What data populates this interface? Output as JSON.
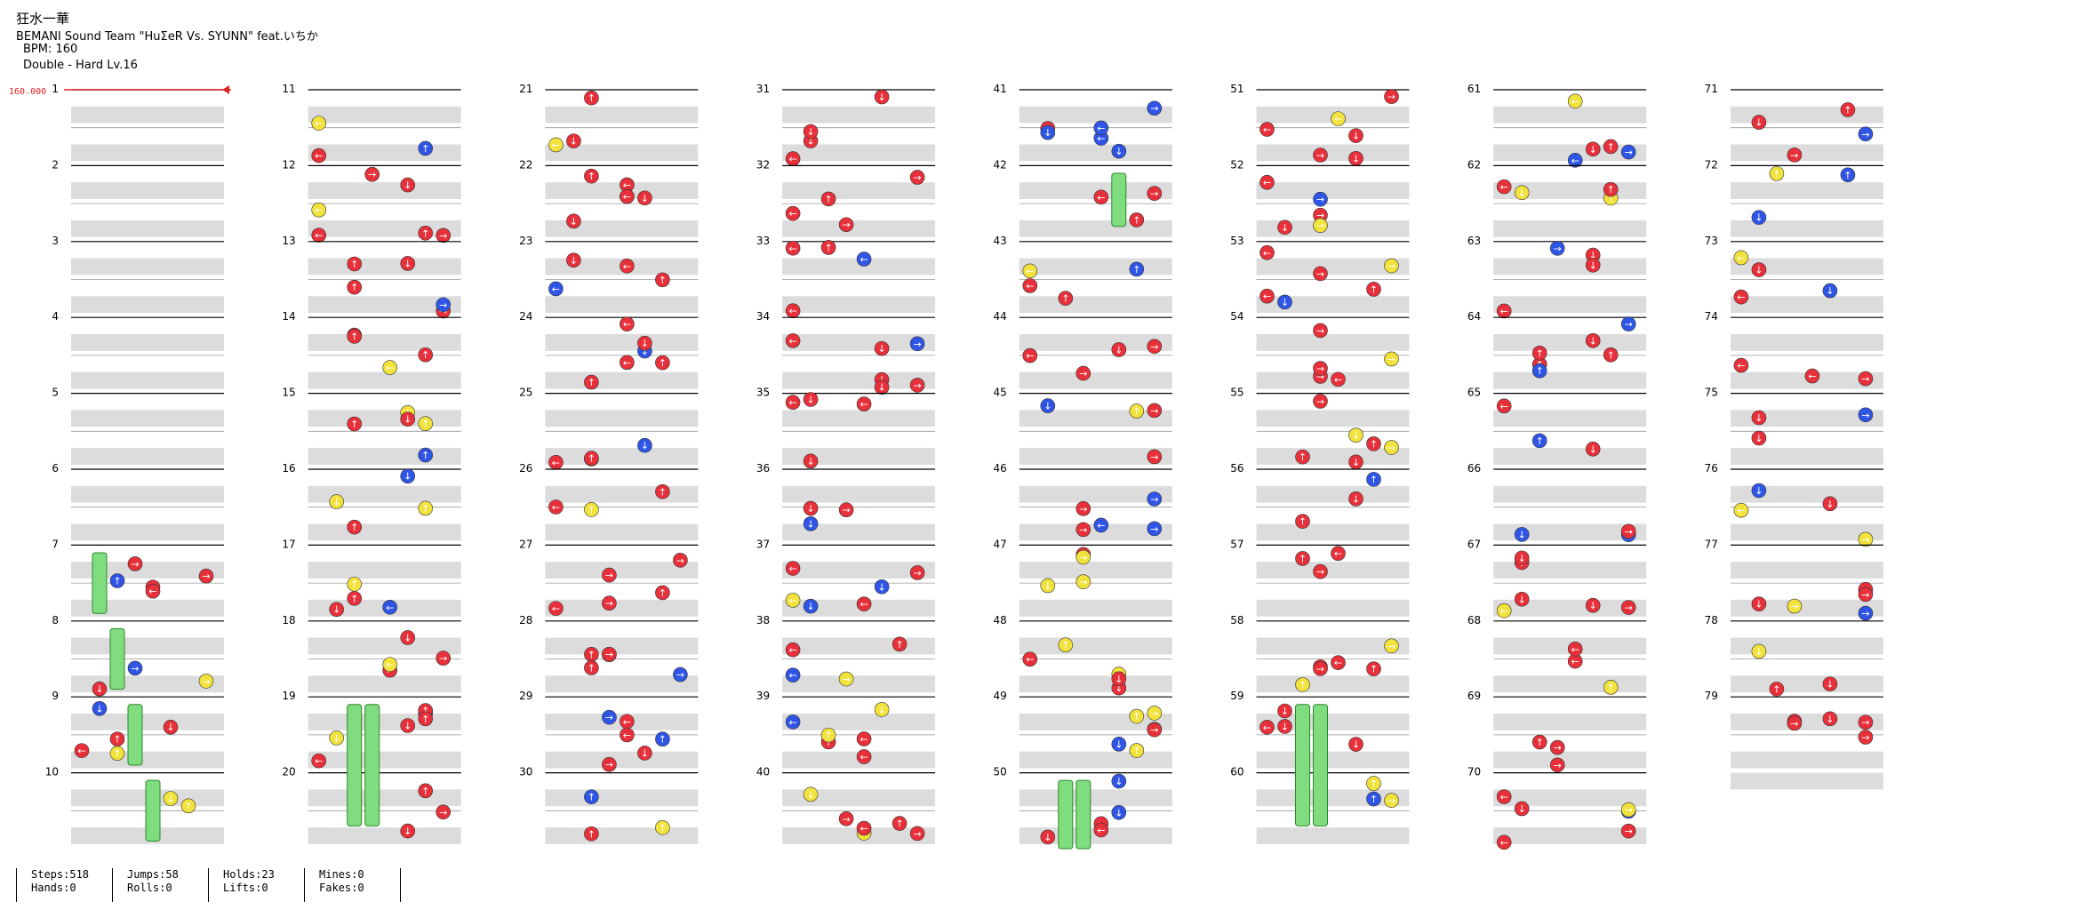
{
  "song": {
    "title": "狂水一華",
    "artist": "BEMANI Sound Team \"HuΣeR Vs. SYUNN\" feat.いちか",
    "bpm_label": "BPM: 160",
    "difficulty_label": "Double - Hard  Lv.16"
  },
  "bpm_marker": "160.000",
  "chart": {
    "measures": [
      "1",
      "2",
      "3",
      "4",
      "5",
      "6",
      "7",
      "8",
      "9",
      "10",
      "11",
      "12",
      "13",
      "14",
      "15",
      "16",
      "17",
      "18",
      "19",
      "20",
      "21",
      "22",
      "23",
      "24",
      "25",
      "26",
      "27",
      "28",
      "29",
      "30",
      "31",
      "32",
      "33",
      "34",
      "35",
      "36",
      "37",
      "38",
      "39",
      "40",
      "41",
      "42",
      "43",
      "44",
      "45",
      "46",
      "47",
      "48",
      "49",
      "50",
      "51",
      "52",
      "53",
      "54",
      "55",
      "56",
      "57",
      "58",
      "59",
      "60",
      "61",
      "62",
      "63",
      "64",
      "65",
      "66",
      "67",
      "68",
      "69",
      "70",
      "71",
      "72",
      "73",
      "74",
      "75",
      "76",
      "77",
      "78",
      "79"
    ],
    "measures_per_column": 10,
    "total_measures": 79,
    "panels": 8,
    "colors": {
      "quarter": "#e8303a",
      "eighth": "#2f55e6",
      "sixteenth": "#f2e23c",
      "hold": "#7fdc7f",
      "band": "#dcdcdc",
      "line": "#000000",
      "bpm": "#dd2222"
    }
  },
  "stats": [
    {
      "a": "Steps:518",
      "b": "Hands:0"
    },
    {
      "a": "Jumps:58",
      "b": "Rolls:0"
    },
    {
      "a": "Holds:23",
      "b": "Lifts:0"
    },
    {
      "a": "Mines:0",
      "b": "Fakes:0"
    }
  ]
}
